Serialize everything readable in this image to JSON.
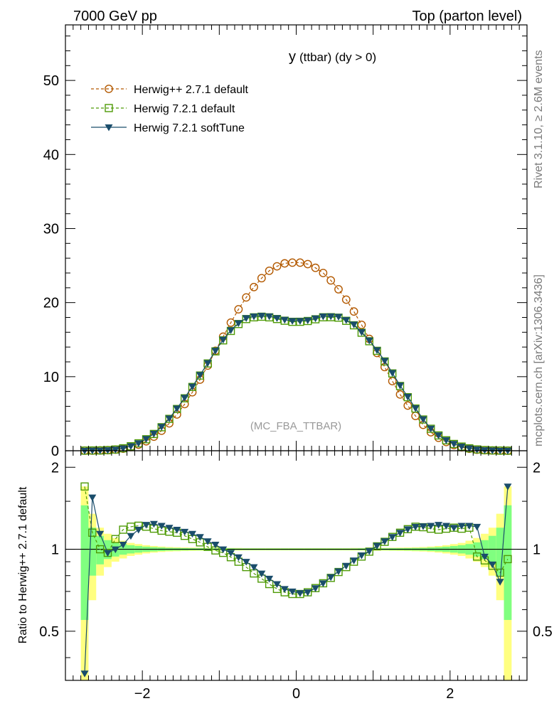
{
  "header": {
    "left": "7000 GeV pp",
    "right": "Top (parton level)"
  },
  "side_text": {
    "rivet": "Rivet 3.1.10, ≥ 2.6M events",
    "source": "mcplots.cern.ch [arXiv:1306.3436]"
  },
  "chart_data": [
    {
      "type": "line",
      "title_main": "y",
      "title_detail": "(ttbar) (dy > 0)",
      "watermark": "(MC_FBA_TTBAR)",
      "xlim": [
        -3.0,
        3.0
      ],
      "ylim": [
        0,
        57.5
      ],
      "x_ticks": [
        -2,
        0,
        2
      ],
      "y_ticks": [
        0,
        10,
        20,
        30,
        40,
        50
      ],
      "legend_position": "top-left",
      "x": [
        -2.75,
        -2.65,
        -2.55,
        -2.45,
        -2.35,
        -2.25,
        -2.15,
        -2.05,
        -1.95,
        -1.85,
        -1.75,
        -1.65,
        -1.55,
        -1.45,
        -1.35,
        -1.25,
        -1.15,
        -1.05,
        -0.95,
        -0.85,
        -0.75,
        -0.65,
        -0.55,
        -0.45,
        -0.35,
        -0.25,
        -0.15,
        -0.05,
        0.05,
        0.15,
        0.25,
        0.35,
        0.45,
        0.55,
        0.65,
        0.75,
        0.85,
        0.95,
        1.05,
        1.15,
        1.25,
        1.35,
        1.45,
        1.55,
        1.65,
        1.75,
        1.85,
        1.95,
        2.05,
        2.15,
        2.25,
        2.35,
        2.45,
        2.55,
        2.65,
        2.75
      ],
      "series": [
        {
          "name": "Herwig++ 2.7.1 default",
          "color": "#b35900",
          "marker": "open-circle",
          "line": "dashed",
          "values": [
            0.01,
            0.02,
            0.04,
            0.08,
            0.15,
            0.28,
            0.5,
            0.82,
            1.28,
            1.9,
            2.7,
            3.7,
            4.9,
            6.3,
            7.9,
            9.6,
            11.5,
            13.5,
            15.4,
            17.3,
            19.1,
            20.7,
            22.1,
            23.3,
            24.3,
            24.9,
            25.3,
            25.4,
            25.4,
            25.2,
            24.7,
            24.0,
            23.0,
            21.8,
            20.4,
            18.8,
            17.0,
            15.1,
            13.2,
            11.3,
            9.4,
            7.6,
            6.1,
            4.7,
            3.5,
            2.5,
            1.75,
            1.18,
            0.76,
            0.47,
            0.27,
            0.14,
            0.07,
            0.035,
            0.015,
            0.006
          ]
        },
        {
          "name": "Herwig 7.2.1 default",
          "color": "#4e9a06",
          "marker": "open-square",
          "line": "dashed",
          "values": [
            0.017,
            0.035,
            0.04,
            0.08,
            0.163,
            0.331,
            0.605,
            1.002,
            1.551,
            2.266,
            3.175,
            4.303,
            5.635,
            7.081,
            8.611,
            10.156,
            11.784,
            13.42,
            14.905,
            16.178,
            17.112,
            17.779,
            18.016,
            18.098,
            18.014,
            17.786,
            17.558,
            17.408,
            17.414,
            17.519,
            17.752,
            18.022,
            18.032,
            17.968,
            17.544,
            16.937,
            15.938,
            14.789,
            13.493,
            12.057,
            10.44,
            8.743,
            7.231,
            5.695,
            4.218,
            2.969,
            2.066,
            1.409,
            0.915,
            0.563,
            0.326,
            0.177,
            0.087,
            0.045,
            0.017,
            0.009
          ]
        },
        {
          "name": "Herwig 7.2.1 softTune",
          "color": "#1a4d6b",
          "marker": "filled-down-triangle",
          "line": "solid",
          "values": [
            0.012,
            0.033,
            0.038,
            0.079,
            0.162,
            0.34,
            0.62,
            1.025,
            1.595,
            2.318,
            3.241,
            4.366,
            5.711,
            7.158,
            8.68,
            10.233,
            11.849,
            13.51,
            14.998,
            16.282,
            17.226,
            17.91,
            18.139,
            18.221,
            18.159,
            17.915,
            17.686,
            17.526,
            17.526,
            17.619,
            17.878,
            18.139,
            18.155,
            18.096,
            17.646,
            17.053,
            16.031,
            14.894,
            13.586,
            12.148,
            10.515,
            8.814,
            7.297,
            5.745,
            4.263,
            3.001,
            2.093,
            1.433,
            0.93,
            0.575,
            0.332,
            0.178,
            0.086,
            0.047,
            0.016,
            0.011
          ]
        }
      ]
    },
    {
      "type": "line",
      "ylabel": "Ratio to Herwig++ 2.7.1 default",
      "xlim": [
        -3.0,
        3.0
      ],
      "ylim": [
        0.33,
        2.3
      ],
      "y_scale": "log",
      "x_ticks": [
        -2,
        0,
        2
      ],
      "y_ticks": [
        0.5,
        1,
        2
      ],
      "reference_line": 1,
      "band_inner_color": "#80ff80",
      "band_outer_color": "#ffff80",
      "x": [
        -2.75,
        -2.65,
        -2.55,
        -2.45,
        -2.35,
        -2.25,
        -2.15,
        -2.05,
        -1.95,
        -1.85,
        -1.75,
        -1.65,
        -1.55,
        -1.45,
        -1.35,
        -1.25,
        -1.15,
        -1.05,
        -0.95,
        -0.85,
        -0.75,
        -0.65,
        -0.55,
        -0.45,
        -0.35,
        -0.25,
        -0.15,
        -0.05,
        0.05,
        0.15,
        0.25,
        0.35,
        0.45,
        0.55,
        0.65,
        0.75,
        0.85,
        0.95,
        1.05,
        1.15,
        1.25,
        1.35,
        1.45,
        1.55,
        1.65,
        1.75,
        1.85,
        1.95,
        2.05,
        2.15,
        2.25,
        2.35,
        2.45,
        2.55,
        2.65,
        2.75
      ],
      "band_inner_halfwidth": [
        0.45,
        0.2,
        0.12,
        0.08,
        0.06,
        0.045,
        0.035,
        0.028,
        0.022,
        0.018,
        0.015,
        0.012,
        0.011,
        0.01,
        0.009,
        0.009,
        0.008,
        0.008,
        0.008,
        0.008,
        0.007,
        0.007,
        0.007,
        0.007,
        0.007,
        0.007,
        0.007,
        0.007,
        0.007,
        0.007,
        0.007,
        0.007,
        0.007,
        0.007,
        0.007,
        0.007,
        0.008,
        0.008,
        0.008,
        0.008,
        0.009,
        0.009,
        0.01,
        0.011,
        0.012,
        0.015,
        0.018,
        0.022,
        0.028,
        0.035,
        0.045,
        0.06,
        0.08,
        0.12,
        0.2,
        0.45
      ],
      "band_outer_halfwidth": [
        0.7,
        0.35,
        0.2,
        0.14,
        0.1,
        0.075,
        0.055,
        0.045,
        0.035,
        0.028,
        0.023,
        0.019,
        0.017,
        0.015,
        0.014,
        0.013,
        0.012,
        0.012,
        0.011,
        0.011,
        0.011,
        0.01,
        0.01,
        0.01,
        0.01,
        0.01,
        0.01,
        0.01,
        0.01,
        0.01,
        0.01,
        0.01,
        0.01,
        0.01,
        0.01,
        0.011,
        0.011,
        0.011,
        0.012,
        0.012,
        0.013,
        0.014,
        0.015,
        0.017,
        0.019,
        0.023,
        0.028,
        0.035,
        0.045,
        0.055,
        0.075,
        0.1,
        0.14,
        0.2,
        0.35,
        0.7
      ],
      "series": [
        {
          "name": "Herwig 7.2.1 default",
          "color": "#4e9a06",
          "marker": "open-square",
          "line": "dashed",
          "values": [
            1.7,
            1.15,
            1.0,
            0.97,
            1.09,
            1.18,
            1.21,
            1.22,
            1.21,
            1.19,
            1.17,
            1.16,
            1.15,
            1.12,
            1.09,
            1.06,
            1.02,
            0.99,
            0.97,
            0.935,
            0.9,
            0.86,
            0.815,
            0.78,
            0.745,
            0.715,
            0.695,
            0.685,
            0.685,
            0.695,
            0.72,
            0.75,
            0.785,
            0.825,
            0.86,
            0.9,
            0.94,
            0.98,
            1.025,
            1.065,
            1.11,
            1.15,
            1.185,
            1.21,
            1.205,
            1.19,
            1.18,
            1.19,
            1.2,
            1.19,
            1.2,
            0.94,
            0.91,
            0.87,
            0.82,
            0.92
          ]
        },
        {
          "name": "Herwig 7.2.1 softTune",
          "color": "#1a4d6b",
          "marker": "filled-down-triangle",
          "line": "solid",
          "values": [
            0.35,
            1.55,
            1.14,
            0.97,
            1.0,
            1.04,
            1.12,
            1.18,
            1.23,
            1.24,
            1.22,
            1.2,
            1.18,
            1.16,
            1.14,
            1.11,
            1.07,
            1.04,
            1.0,
            0.97,
            0.935,
            0.9,
            0.86,
            0.815,
            0.78,
            0.745,
            0.715,
            0.7,
            0.69,
            0.695,
            0.72,
            0.75,
            0.79,
            0.83,
            0.87,
            0.91,
            0.95,
            0.985,
            1.03,
            1.07,
            1.11,
            1.15,
            1.185,
            1.21,
            1.215,
            1.22,
            1.23,
            1.22,
            1.2,
            1.22,
            1.22,
            1.21,
            0.94,
            0.88,
            0.76,
            1.7
          ]
        }
      ]
    }
  ]
}
